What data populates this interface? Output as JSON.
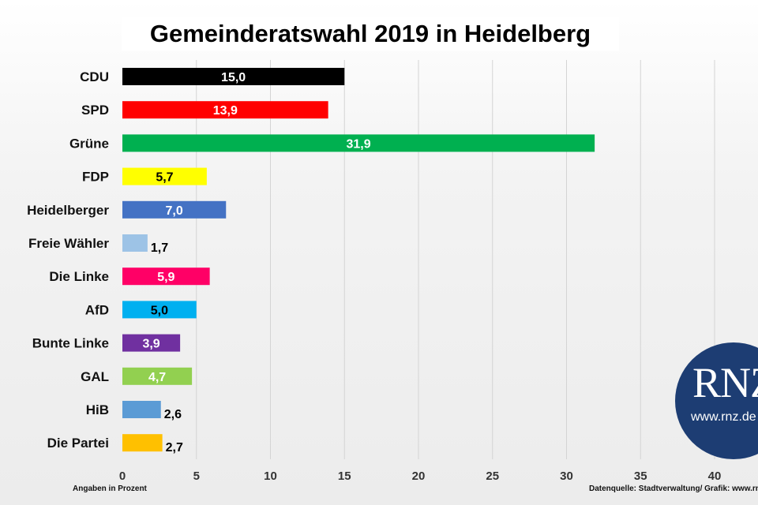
{
  "chart_data": {
    "type": "bar",
    "orientation": "horizontal",
    "title": "Gemeinderatswahl 2019 in Heidelberg",
    "categories": [
      "CDU",
      "SPD",
      "Grüne",
      "FDP",
      "Heidelberger",
      "Freie Wähler",
      "Die Linke",
      "AfD",
      "Bunte Linke",
      "GAL",
      "HiB",
      "Die Partei"
    ],
    "values": [
      15.0,
      13.9,
      31.9,
      5.7,
      7.0,
      1.7,
      5.9,
      5.0,
      3.9,
      4.7,
      2.6,
      2.7
    ],
    "value_labels": [
      "15,0",
      "13,9",
      "31,9",
      "5,7",
      "7,0",
      "1,7",
      "5,9",
      "5,0",
      "3,9",
      "4,7",
      "2,6",
      "2,7"
    ],
    "colors": [
      "#000000",
      "#ff0000",
      "#00b050",
      "#ffff00",
      "#4472c4",
      "#9dc3e6",
      "#ff0066",
      "#00b0f0",
      "#7030a0",
      "#92d050",
      "#5b9bd5",
      "#ffc000"
    ],
    "label_colors": [
      "#ffffff",
      "#ffffff",
      "#ffffff",
      "#000000",
      "#ffffff",
      "#000000",
      "#ffffff",
      "#000000",
      "#ffffff",
      "#ffffff",
      "#000000",
      "#000000"
    ],
    "label_inside": [
      true,
      true,
      true,
      true,
      true,
      false,
      true,
      true,
      true,
      true,
      false,
      false
    ],
    "xticks": [
      0,
      5,
      10,
      15,
      20,
      25,
      30,
      35,
      40
    ],
    "xlim": [
      0,
      40
    ],
    "grid": true,
    "legend": false
  },
  "notes": {
    "left": "Angaben in Prozent",
    "right": "Datenquelle: Stadtverwaltung/ Grafik: www.rnz.de"
  },
  "logo": {
    "text": "RNZ",
    "url": "www.rnz.de"
  }
}
